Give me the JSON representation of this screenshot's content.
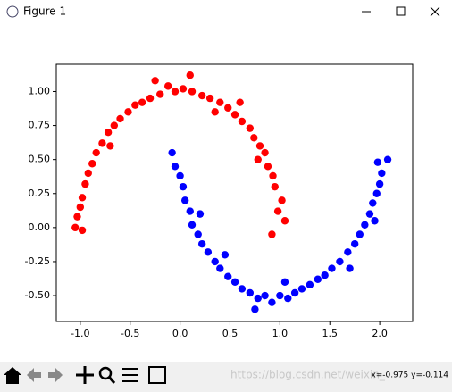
{
  "window": {
    "title": "Figure 1",
    "status": "x=-0.975 y=-0.114",
    "watermark": "https://blog.csdn.net/weixin_"
  },
  "chart_data": {
    "type": "scatter",
    "xlim": [
      -1.24,
      2.33
    ],
    "ylim": [
      -0.69,
      1.2
    ],
    "xticks": [
      {
        "value": -1.0,
        "label": "-1.0"
      },
      -0.5,
      {
        "value": 0.0,
        "label": "0.0"
      },
      0.5,
      {
        "value": 1.0,
        "label": "1.0"
      },
      1.5,
      {
        "value": 2.0,
        "label": "2.0"
      }
    ],
    "yticks": [
      {
        "value": -0.5,
        "label": "-0.50"
      },
      -0.25,
      {
        "value": 0.0,
        "label": "0.00"
      },
      0.25,
      {
        "value": 0.5,
        "label": "0.50"
      },
      0.75,
      {
        "value": 1.0,
        "label": "1.00"
      }
    ],
    "series": [
      {
        "color": "#ff0000",
        "x": [
          1.05,
          0.98,
          1.02,
          0.95,
          0.93,
          0.88,
          0.85,
          0.8,
          0.74,
          0.7,
          0.62,
          0.55,
          0.48,
          0.4,
          0.3,
          0.22,
          0.12,
          0.03,
          -0.05,
          -0.12,
          -0.2,
          -0.3,
          -0.38,
          -0.45,
          -0.52,
          -0.6,
          -0.66,
          -0.72,
          -0.78,
          -0.84,
          -0.88,
          -0.92,
          -0.95,
          -0.98,
          -1.0,
          -1.03,
          -1.05,
          -0.98,
          0.92,
          0.1,
          0.35,
          -0.25,
          0.6,
          -0.7,
          0.78
        ],
        "y": [
          0.05,
          0.12,
          0.2,
          0.3,
          0.38,
          0.45,
          0.55,
          0.6,
          0.66,
          0.73,
          0.78,
          0.83,
          0.88,
          0.92,
          0.95,
          0.97,
          1.0,
          1.02,
          1.0,
          1.04,
          0.98,
          0.95,
          0.92,
          0.9,
          0.85,
          0.8,
          0.75,
          0.7,
          0.62,
          0.55,
          0.47,
          0.4,
          0.32,
          0.22,
          0.15,
          0.08,
          0.0,
          -0.02,
          -0.05,
          1.12,
          0.85,
          1.08,
          0.92,
          0.6,
          0.5
        ]
      },
      {
        "color": "#0000ff",
        "x": [
          -0.08,
          -0.05,
          0.0,
          0.03,
          0.05,
          0.1,
          0.12,
          0.18,
          0.22,
          0.28,
          0.35,
          0.4,
          0.48,
          0.55,
          0.62,
          0.7,
          0.78,
          0.85,
          0.92,
          1.0,
          1.08,
          1.15,
          1.22,
          1.3,
          1.38,
          1.45,
          1.52,
          1.6,
          1.68,
          1.75,
          1.8,
          1.85,
          1.9,
          1.93,
          1.97,
          2.0,
          2.02,
          1.98,
          2.08,
          0.75,
          1.05,
          0.2,
          1.7,
          0.45,
          1.95
        ],
        "y": [
          0.55,
          0.45,
          0.38,
          0.3,
          0.2,
          0.12,
          0.02,
          -0.05,
          -0.12,
          -0.18,
          -0.25,
          -0.3,
          -0.36,
          -0.4,
          -0.45,
          -0.48,
          -0.52,
          -0.5,
          -0.55,
          -0.5,
          -0.52,
          -0.48,
          -0.45,
          -0.42,
          -0.38,
          -0.35,
          -0.3,
          -0.25,
          -0.18,
          -0.12,
          -0.05,
          0.02,
          0.1,
          0.18,
          0.25,
          0.32,
          0.4,
          0.48,
          0.5,
          -0.6,
          -0.4,
          0.1,
          -0.3,
          -0.2,
          0.05
        ]
      }
    ]
  }
}
